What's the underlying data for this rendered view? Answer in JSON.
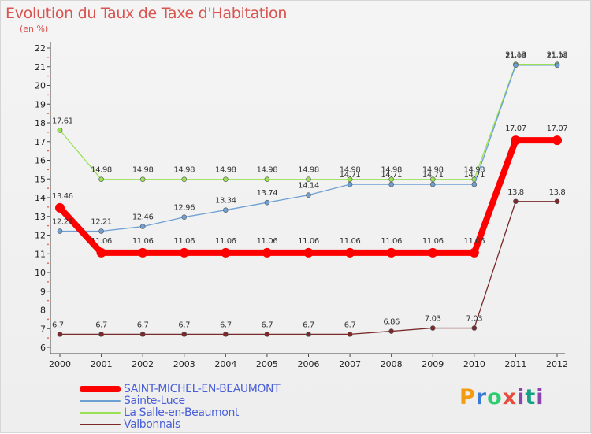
{
  "header": {
    "title": "Evolution du Taux de Taxe d'Habitation",
    "subtitle": "(en %)"
  },
  "logo": {
    "text": "Proxiti"
  },
  "chart_data": {
    "type": "line",
    "title": "Evolution du Taux de Taxe d'Habitation",
    "ylabel": "(en %)",
    "xlabel": "",
    "x": [
      "2000",
      "2001",
      "2002",
      "2003",
      "2004",
      "2005",
      "2006",
      "2007",
      "2008",
      "2009",
      "2010",
      "2011",
      "2012"
    ],
    "ylim": [
      6,
      22
    ],
    "yticks": [
      6,
      7,
      8,
      9,
      10,
      11,
      12,
      13,
      14,
      15,
      16,
      17,
      18,
      19,
      20,
      21,
      22
    ],
    "grid": false,
    "legend_position": "bottom-left",
    "series": [
      {
        "name": "SAINT-MICHEL-EN-BEAUMONT",
        "color": "#ff0000",
        "values": [
          13.46,
          11.06,
          11.06,
          11.06,
          11.06,
          11.06,
          11.06,
          11.06,
          11.06,
          11.06,
          11.06,
          17.07,
          17.07
        ],
        "labels": [
          "13.46",
          "11.06",
          "11.06",
          "11.06",
          "11.06",
          "11.06",
          "11.06",
          "11.06",
          "11.06",
          "11.06",
          "11.06",
          "17.07",
          "17.07"
        ]
      },
      {
        "name": "Sainte-Luce",
        "color": "#6fa0d4",
        "values": [
          12.21,
          12.21,
          12.46,
          12.96,
          13.34,
          13.74,
          14.14,
          14.71,
          14.71,
          14.71,
          14.71,
          21.08,
          21.08
        ],
        "labels": [
          "12.21",
          "12.21",
          "12.46",
          "12.96",
          "13.34",
          "13.74",
          "14.14",
          "14.71",
          "14.71",
          "14.71",
          "14.71",
          "21.08",
          "21.08"
        ]
      },
      {
        "name": "La Salle-en-Beaumont",
        "color": "#99e055",
        "values": [
          17.61,
          14.98,
          14.98,
          14.98,
          14.98,
          14.98,
          14.98,
          14.98,
          14.98,
          14.98,
          14.98,
          21.13,
          21.13
        ],
        "labels": [
          "17.61",
          "14.98",
          "14.98",
          "14.98",
          "14.98",
          "14.98",
          "14.98",
          "14.98",
          "14.98",
          "14.98",
          "14.98",
          "21.13",
          "21.13"
        ]
      },
      {
        "name": "Valbonnais",
        "color": "#7a2a2a",
        "values": [
          6.7,
          6.7,
          6.7,
          6.7,
          6.7,
          6.7,
          6.7,
          6.7,
          6.86,
          7.03,
          7.03,
          13.8,
          13.8
        ],
        "labels": [
          "6.7",
          "6.7",
          "6.7",
          "6.7",
          "6.7",
          "6.7",
          "6.7",
          "6.7",
          "6.86",
          "7.03",
          "7.03",
          "13.8",
          "13.8"
        ]
      }
    ]
  }
}
